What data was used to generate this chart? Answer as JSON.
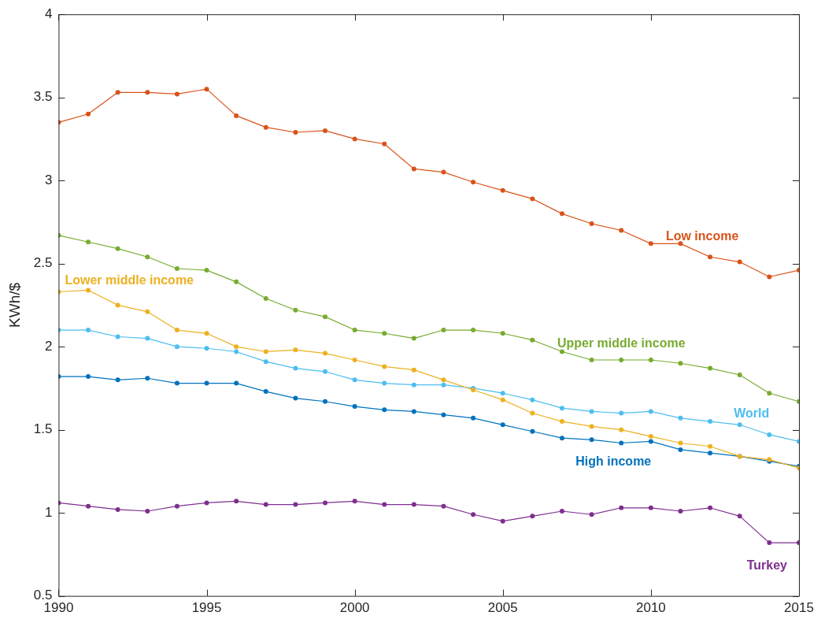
{
  "chart_data": {
    "type": "line",
    "ylabel": "KWh/$",
    "x": [
      1990,
      1991,
      1992,
      1993,
      1994,
      1995,
      1996,
      1997,
      1998,
      1999,
      2000,
      2001,
      2002,
      2003,
      2004,
      2005,
      2006,
      2007,
      2008,
      2009,
      2010,
      2011,
      2012,
      2013,
      2014,
      2015
    ],
    "xlim": [
      1990,
      2015
    ],
    "xticks": [
      1990,
      1995,
      2000,
      2005,
      2010,
      2015
    ],
    "ylim": [
      0.5,
      4
    ],
    "yticks": [
      0.5,
      1,
      1.5,
      2,
      2.5,
      3,
      3.5,
      4
    ],
    "grid": false,
    "legend": false,
    "marker": "circle",
    "line_style": "solid",
    "series": [
      {
        "name": "Low income",
        "color": "#d95319",
        "values": [
          3.35,
          3.4,
          3.53,
          3.53,
          3.52,
          3.55,
          3.39,
          3.32,
          3.29,
          3.3,
          3.25,
          3.22,
          3.07,
          3.05,
          2.99,
          2.94,
          2.89,
          2.8,
          2.74,
          2.7,
          2.62,
          2.62,
          2.54,
          2.51,
          2.42,
          2.46
        ]
      },
      {
        "name": "Upper middle income",
        "color": "#77ac30",
        "values": [
          2.67,
          2.63,
          2.59,
          2.54,
          2.47,
          2.46,
          2.39,
          2.29,
          2.22,
          2.18,
          2.1,
          2.08,
          2.05,
          2.1,
          2.1,
          2.08,
          2.04,
          1.97,
          1.92,
          1.92,
          1.92,
          1.9,
          1.87,
          1.83,
          1.72,
          1.67
        ]
      },
      {
        "name": "Lower middle income",
        "color": "#edb120",
        "values": [
          2.33,
          2.34,
          2.25,
          2.21,
          2.1,
          2.08,
          2.0,
          1.97,
          1.98,
          1.96,
          1.92,
          1.88,
          1.86,
          1.8,
          1.74,
          1.68,
          1.6,
          1.55,
          1.52,
          1.5,
          1.46,
          1.42,
          1.4,
          1.34,
          1.32,
          1.27
        ]
      },
      {
        "name": "World",
        "color": "#4dbeee",
        "values": [
          2.1,
          2.1,
          2.06,
          2.05,
          2.0,
          1.99,
          1.97,
          1.91,
          1.87,
          1.85,
          1.8,
          1.78,
          1.77,
          1.77,
          1.75,
          1.72,
          1.68,
          1.63,
          1.61,
          1.6,
          1.61,
          1.57,
          1.55,
          1.53,
          1.47,
          1.43
        ]
      },
      {
        "name": "High income",
        "color": "#0072bd",
        "values": [
          1.82,
          1.82,
          1.8,
          1.81,
          1.78,
          1.78,
          1.78,
          1.73,
          1.69,
          1.67,
          1.64,
          1.62,
          1.61,
          1.59,
          1.57,
          1.53,
          1.49,
          1.45,
          1.44,
          1.42,
          1.43,
          1.38,
          1.36,
          1.34,
          1.31,
          1.28
        ]
      },
      {
        "name": "Turkey",
        "color": "#7e2f8e",
        "values": [
          1.06,
          1.04,
          1.02,
          1.01,
          1.04,
          1.06,
          1.07,
          1.05,
          1.05,
          1.06,
          1.07,
          1.05,
          1.05,
          1.04,
          0.99,
          0.95,
          0.98,
          1.01,
          0.99,
          1.03,
          1.03,
          1.01,
          1.03,
          0.98,
          0.82,
          0.82
        ]
      }
    ]
  }
}
